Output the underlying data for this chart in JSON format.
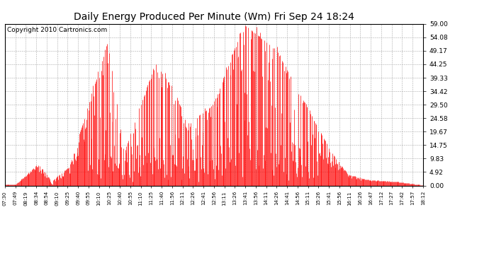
{
  "title": "Daily Energy Produced Per Minute (Wm) Fri Sep 24 18:24",
  "copyright": "Copyright 2010 Cartronics.com",
  "y_ticks": [
    0.0,
    4.92,
    9.83,
    14.75,
    19.67,
    24.58,
    29.5,
    34.42,
    39.33,
    44.25,
    49.17,
    54.08,
    59.0
  ],
  "x_labels": [
    "07:30",
    "07:49",
    "08:19",
    "08:34",
    "08:54",
    "09:10",
    "09:25",
    "09:40",
    "09:55",
    "10:10",
    "10:25",
    "10:40",
    "10:55",
    "11:10",
    "11:25",
    "11:40",
    "11:56",
    "12:11",
    "12:26",
    "12:41",
    "12:56",
    "13:11",
    "13:26",
    "13:41",
    "13:56",
    "14:11",
    "14:26",
    "14:41",
    "14:56",
    "15:11",
    "15:26",
    "15:41",
    "15:56",
    "16:11",
    "16:26",
    "16:47",
    "17:12",
    "17:27",
    "17:42",
    "17:57",
    "18:12"
  ],
  "ymax": 59.0,
  "ymin": 0.0,
  "line_color": "red",
  "bg_color": "white",
  "title_color": "black",
  "grid_color": "#aaaaaa",
  "title_fontsize": 10,
  "copyright_fontsize": 6.5
}
